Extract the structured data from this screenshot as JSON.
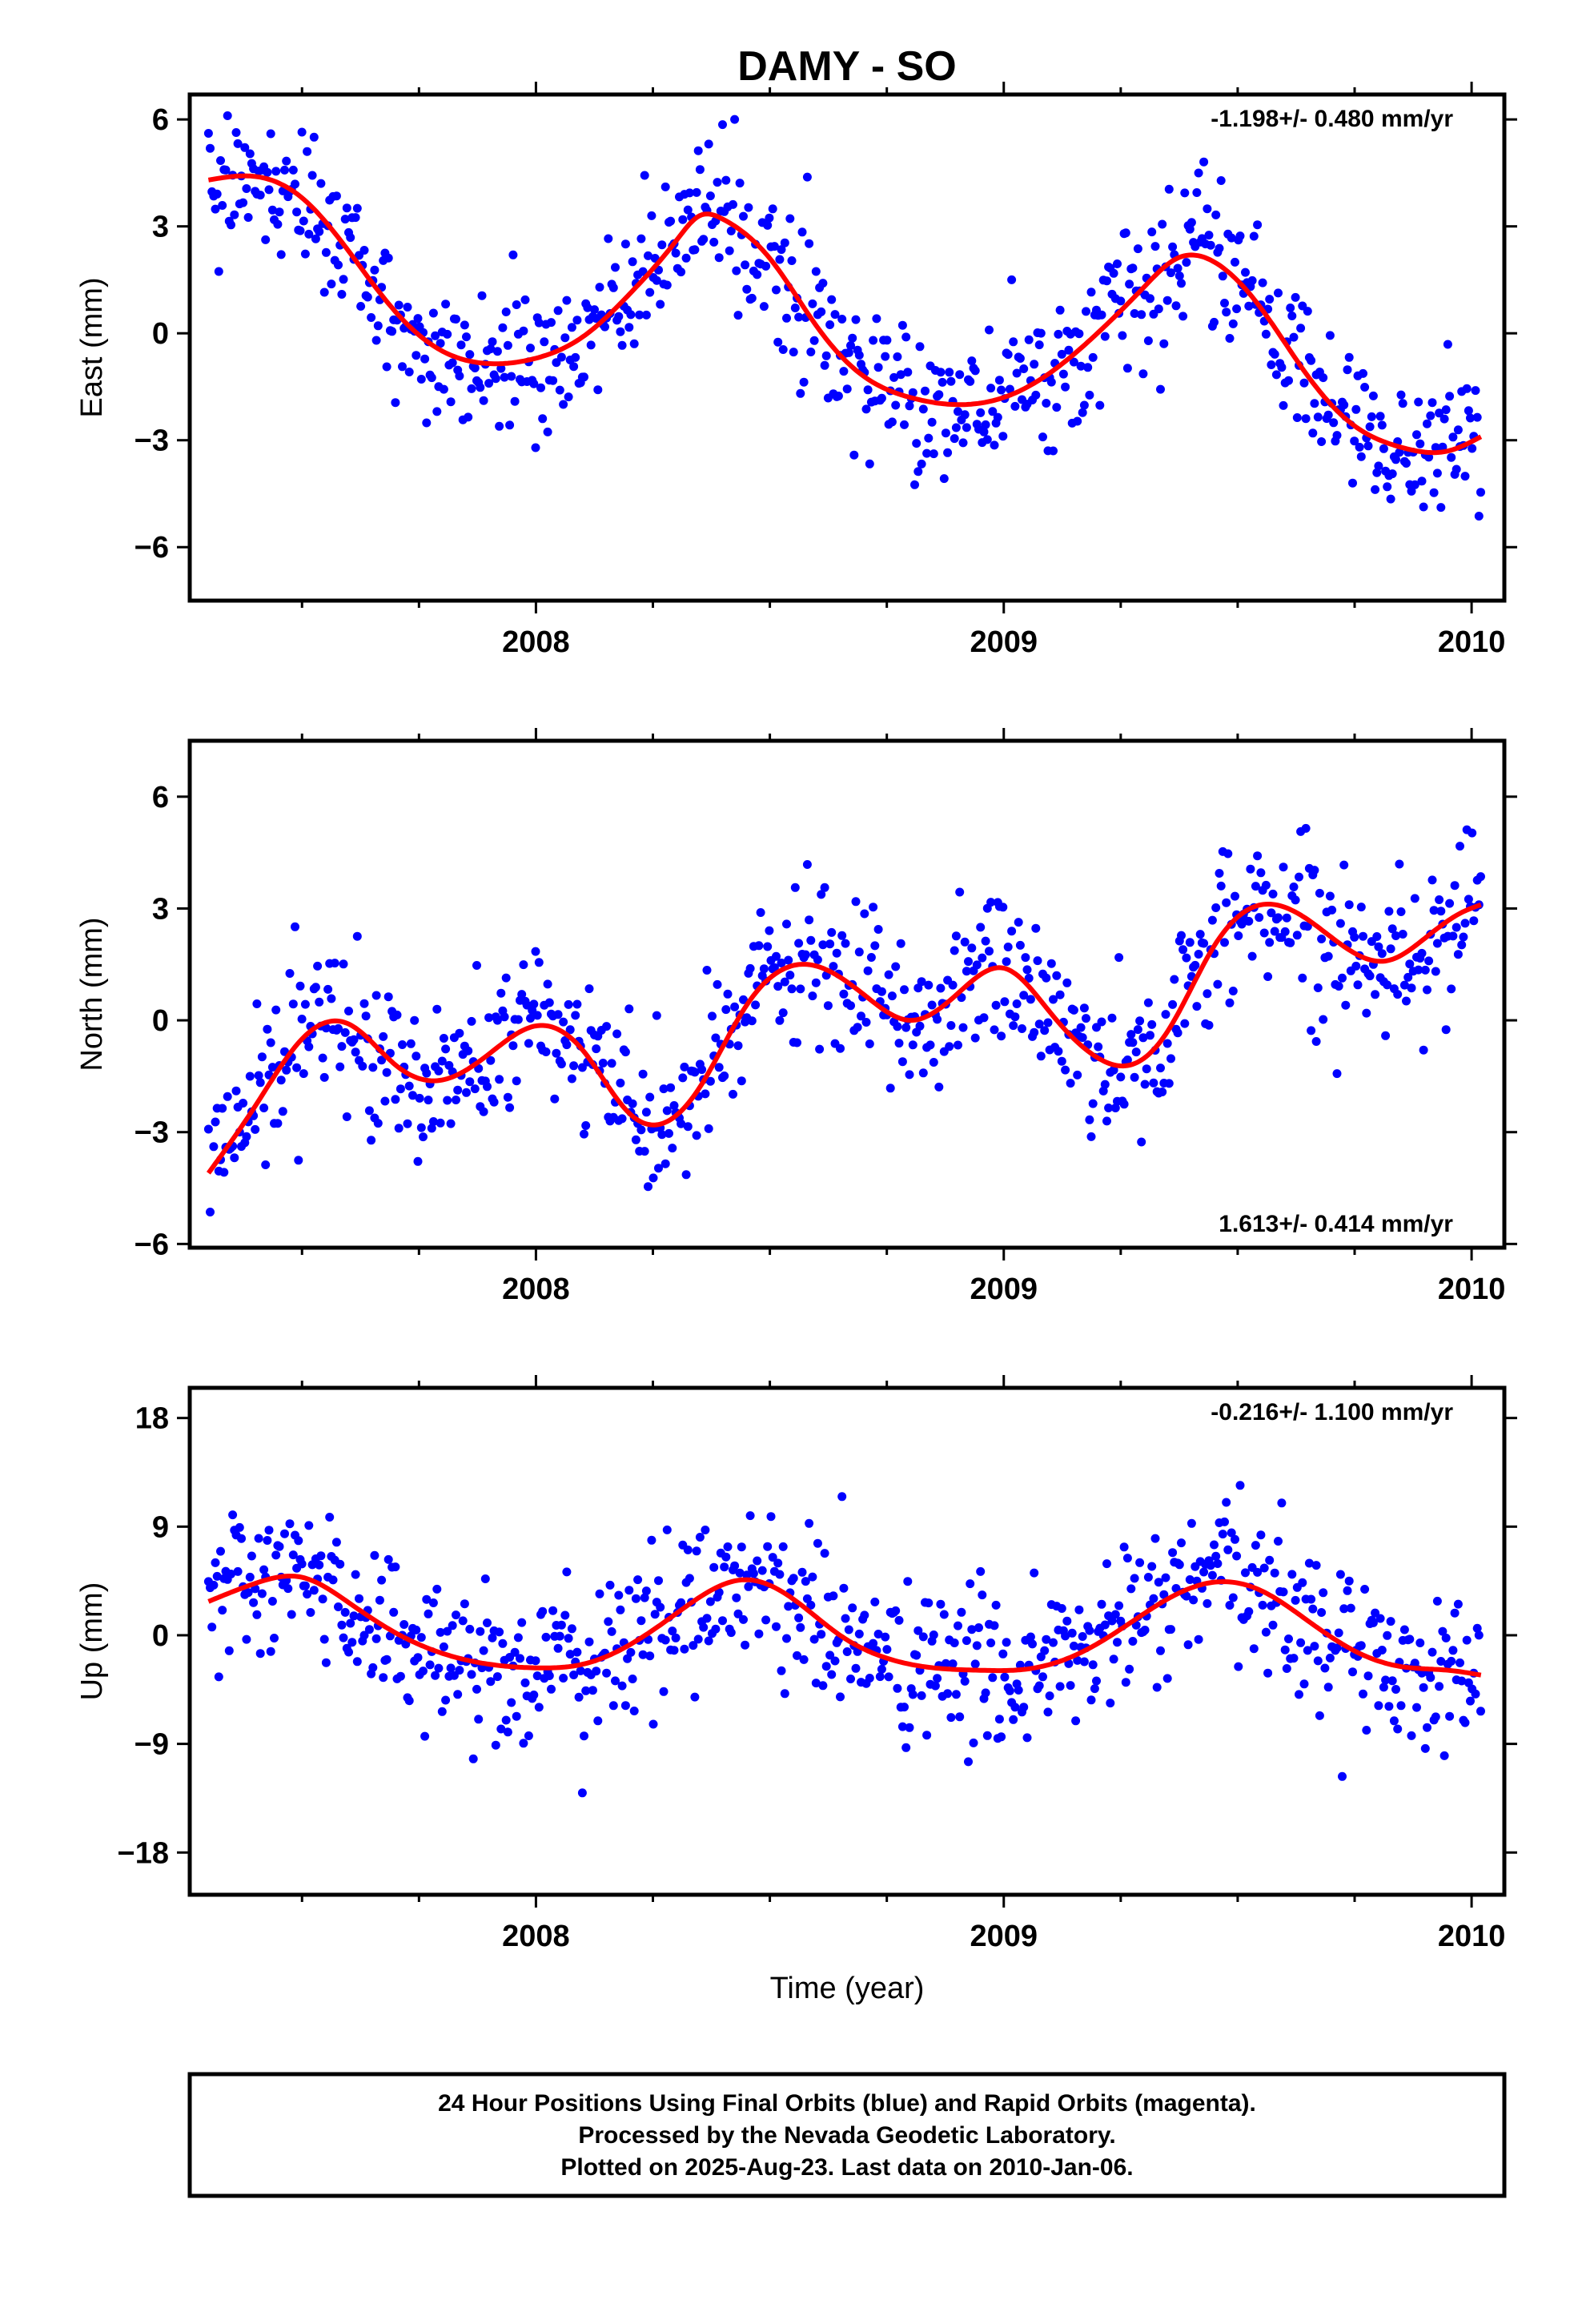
{
  "chart_data": {
    "type": "scatter",
    "title": "DAMY - SO",
    "xlabel": "Time (year)",
    "xlim": [
      2007.26,
      2010.07
    ],
    "xticks_major": [
      "2008",
      "2009",
      "2010"
    ],
    "xticks_minor": [
      2007.5,
      2007.75,
      2008.25,
      2008.5,
      2008.75,
      2009.25,
      2009.5,
      2009.75
    ],
    "colors": {
      "data": "#0000ff",
      "model": "#ff0000",
      "frame": "#000000"
    },
    "panels": [
      {
        "component": "east",
        "ylabel": "East (mm)",
        "ylim": [
          -7.5,
          6.7
        ],
        "yticks": [
          "6",
          "3",
          "0",
          "−3",
          "−6"
        ],
        "yticks_values": [
          6,
          3,
          0,
          -3,
          -6
        ],
        "rate_label": "-1.198+/- 0.480 mm/yr",
        "rate_position": "top-right",
        "model": {
          "x": [
            2007.3,
            2007.4,
            2007.5,
            2007.6,
            2007.7,
            2007.8,
            2007.9,
            2008.0,
            2008.1,
            2008.2,
            2008.3,
            2008.35,
            2008.4,
            2008.5,
            2008.6,
            2008.7,
            2008.8,
            2008.9,
            2009.0,
            2009.1,
            2009.2,
            2009.3,
            2009.37,
            2009.45,
            2009.55,
            2009.65,
            2009.75,
            2009.85,
            2009.95,
            2010.02
          ],
          "y": [
            4.3,
            4.4,
            3.8,
            2.3,
            0.6,
            -0.5,
            -0.85,
            -0.7,
            -0.1,
            1.1,
            2.6,
            3.3,
            3.2,
            2.1,
            0.2,
            -1.2,
            -1.8,
            -2.0,
            -1.8,
            -1.1,
            0.0,
            1.3,
            2.1,
            2.0,
            0.7,
            -1.2,
            -2.6,
            -3.2,
            -3.3,
            -2.9
          ]
        }
      },
      {
        "component": "north",
        "ylabel": "North (mm)",
        "ylim": [
          -6.1,
          7.5
        ],
        "yticks": [
          "6",
          "3",
          "0",
          "−3",
          "−6"
        ],
        "yticks_values": [
          6,
          3,
          0,
          -3,
          -6
        ],
        "rate_label": "1.613+/- 0.414 mm/yr",
        "rate_position": "bottom-right",
        "model": {
          "x": [
            2007.3,
            2007.4,
            2007.5,
            2007.6,
            2007.7,
            2007.8,
            2007.9,
            2008.0,
            2008.1,
            2008.2,
            2008.26,
            2008.35,
            2008.45,
            2008.58,
            2008.7,
            2008.8,
            2008.9,
            2009.0,
            2009.1,
            2009.2,
            2009.27,
            2009.35,
            2009.45,
            2009.55,
            2009.65,
            2009.75,
            2009.82,
            2009.9,
            2009.98,
            2010.02
          ],
          "y": [
            -4.1,
            -2.3,
            -0.5,
            -0.1,
            -1.2,
            -1.6,
            -0.9,
            -0.15,
            -0.8,
            -2.5,
            -2.8,
            -1.8,
            0.4,
            1.5,
            0.7,
            0.0,
            0.7,
            1.4,
            0.2,
            -1.0,
            -1.2,
            -0.3,
            2.0,
            3.1,
            2.7,
            1.8,
            1.6,
            2.2,
            2.9,
            3.1
          ]
        }
      },
      {
        "component": "up",
        "ylabel": "Up (mm)",
        "ylim": [
          -21.5,
          20.5
        ],
        "yticks": [
          "18",
          "9",
          "0",
          "−9",
          "−18"
        ],
        "yticks_values": [
          18,
          9,
          0,
          -9,
          -18
        ],
        "rate_label": "-0.216+/- 1.100 mm/yr",
        "rate_position": "top-right",
        "model": {
          "x": [
            2007.3,
            2007.4,
            2007.5,
            2007.6,
            2007.7,
            2007.8,
            2007.9,
            2008.0,
            2008.1,
            2008.2,
            2008.3,
            2008.4,
            2008.45,
            2008.55,
            2008.65,
            2008.75,
            2008.85,
            2008.95,
            2009.05,
            2009.15,
            2009.25,
            2009.35,
            2009.45,
            2009.55,
            2009.65,
            2009.75,
            2009.85,
            2009.95,
            2010.02
          ],
          "y": [
            2.8,
            4.3,
            4.8,
            2.7,
            0.2,
            -1.5,
            -2.4,
            -2.7,
            -2.4,
            -0.8,
            1.8,
            4.2,
            4.6,
            3.0,
            0.0,
            -1.9,
            -2.7,
            -2.9,
            -2.8,
            -1.7,
            0.5,
            3.0,
            4.4,
            3.7,
            1.2,
            -1.3,
            -2.6,
            -2.9,
            -3.3
          ]
        }
      }
    ]
  },
  "notes": {
    "line1": "24 Hour Positions Using Final Orbits (blue) and Rapid Orbits (magenta).",
    "line2": "Processed by the Nevada Geodetic Laboratory.",
    "line3": "Plotted on 2025-Aug-23. Last data on 2010-Jan-06."
  }
}
